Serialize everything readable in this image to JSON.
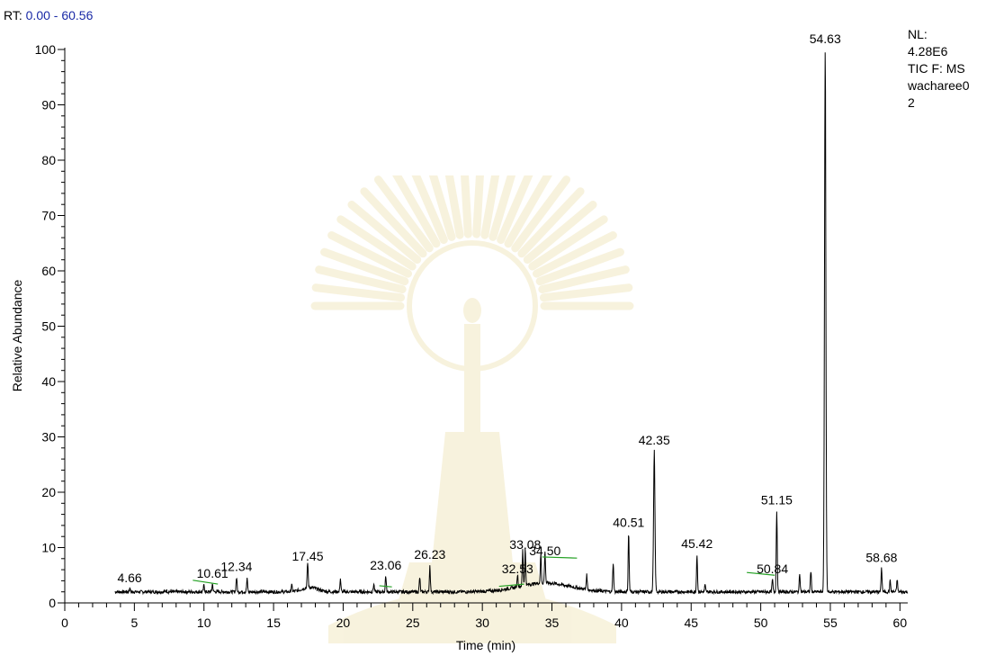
{
  "header": {
    "rt_prefix": "RT:",
    "rt_range": "0.00 - 60.56"
  },
  "info": {
    "line1": "NL:",
    "line2": "4.28E6",
    "line3": "TIC F:  MS",
    "line4": "wacharee0",
    "line5": "2"
  },
  "chart_data": {
    "type": "line",
    "xlabel": "Time (min)",
    "ylabel": "Relative Abundance",
    "xlim": [
      0,
      60.56
    ],
    "ylim": [
      0,
      100
    ],
    "x_ticks": [
      0,
      5,
      10,
      15,
      20,
      25,
      30,
      35,
      40,
      45,
      50,
      55,
      60
    ],
    "y_ticks": [
      0,
      10,
      20,
      30,
      40,
      50,
      60,
      70,
      80,
      90,
      100
    ],
    "grid": false,
    "baseline_level": 2.0,
    "trace_start": 3.6,
    "trace_end": 60.56,
    "peaks": [
      {
        "rt": 4.66,
        "abundance": 2.6,
        "label": "4.66"
      },
      {
        "rt": 7.3,
        "abundance": 2.3,
        "label": ""
      },
      {
        "rt": 10.0,
        "abundance": 3.2,
        "label": ""
      },
      {
        "rt": 10.61,
        "abundance": 3.4,
        "label": "10.61"
      },
      {
        "rt": 12.34,
        "abundance": 4.6,
        "label": "12.34"
      },
      {
        "rt": 13.1,
        "abundance": 4.3,
        "label": ""
      },
      {
        "rt": 16.3,
        "abundance": 3.2,
        "label": ""
      },
      {
        "rt": 17.45,
        "abundance": 6.5,
        "label": "17.45"
      },
      {
        "rt": 19.8,
        "abundance": 4.4,
        "label": ""
      },
      {
        "rt": 22.2,
        "abundance": 3.4,
        "label": ""
      },
      {
        "rt": 23.06,
        "abundance": 4.9,
        "label": "23.06"
      },
      {
        "rt": 25.5,
        "abundance": 4.6,
        "label": ""
      },
      {
        "rt": 26.23,
        "abundance": 6.8,
        "label": "26.23"
      },
      {
        "rt": 32.53,
        "abundance": 4.2,
        "label": "32.53"
      },
      {
        "rt": 32.9,
        "abundance": 8.5,
        "label": ""
      },
      {
        "rt": 33.08,
        "abundance": 8.6,
        "label": "33.08"
      },
      {
        "rt": 34.2,
        "abundance": 7.3,
        "label": ""
      },
      {
        "rt": 34.5,
        "abundance": 7.5,
        "label": "34.50"
      },
      {
        "rt": 37.5,
        "abundance": 4.6,
        "label": ""
      },
      {
        "rt": 39.4,
        "abundance": 7.2,
        "label": ""
      },
      {
        "rt": 40.51,
        "abundance": 12.6,
        "label": "40.51"
      },
      {
        "rt": 42.35,
        "abundance": 27.5,
        "label": "42.35"
      },
      {
        "rt": 45.42,
        "abundance": 8.8,
        "label": "45.42"
      },
      {
        "rt": 46.0,
        "abundance": 3.2,
        "label": ""
      },
      {
        "rt": 50.84,
        "abundance": 4.2,
        "label": "50.84"
      },
      {
        "rt": 51.15,
        "abundance": 16.7,
        "label": "51.15"
      },
      {
        "rt": 52.8,
        "abundance": 5.4,
        "label": ""
      },
      {
        "rt": 53.6,
        "abundance": 5.8,
        "label": ""
      },
      {
        "rt": 54.63,
        "abundance": 100,
        "label": "54.63"
      },
      {
        "rt": 58.68,
        "abundance": 6.3,
        "label": "58.68"
      },
      {
        "rt": 59.3,
        "abundance": 4.0,
        "label": ""
      },
      {
        "rt": 59.8,
        "abundance": 4.3,
        "label": ""
      }
    ],
    "baseline_segments": [
      {
        "x": [
          9.2,
          11.0
        ],
        "y": [
          4.1,
          3.4
        ]
      },
      {
        "x": [
          22.6,
          23.5
        ],
        "y": [
          3.1,
          2.9
        ]
      },
      {
        "x": [
          31.2,
          33.0
        ],
        "y": [
          3.0,
          3.4
        ]
      },
      {
        "x": [
          34.3,
          36.8
        ],
        "y": [
          8.3,
          8.1
        ]
      },
      {
        "x": [
          49.0,
          51.0
        ],
        "y": [
          5.5,
          5.0
        ]
      }
    ],
    "colors": {
      "trace": "#000000",
      "baseline": "#22a022",
      "rt_range_text": "#1a2aa6"
    }
  }
}
